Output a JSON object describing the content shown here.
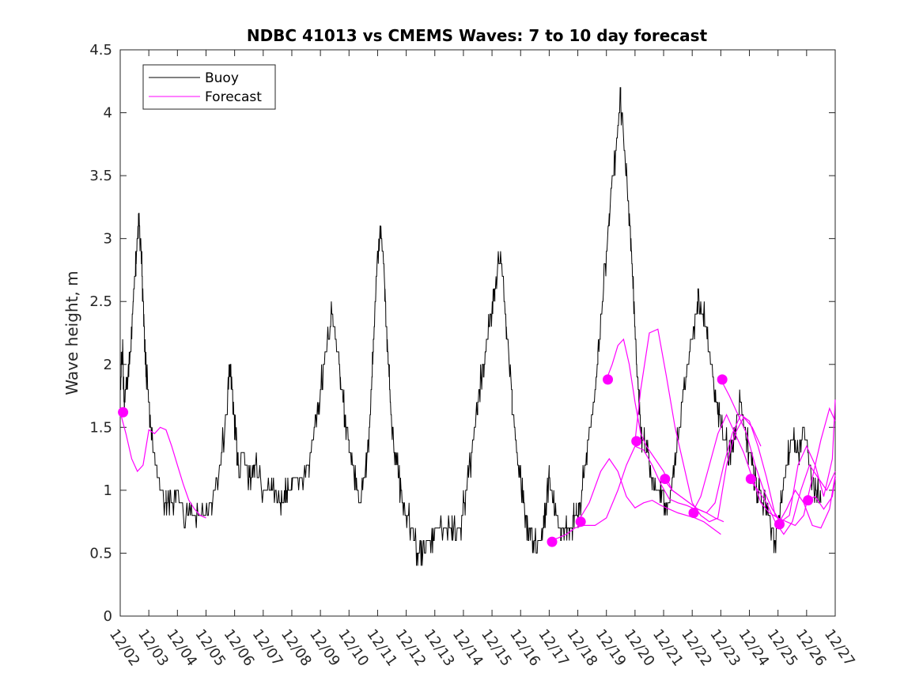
{
  "chart_data": {
    "type": "line",
    "title": "NDBC 41013 vs CMEMS Waves: 7 to 10 day forecast",
    "xlabel": "",
    "ylabel": "Wave height, m",
    "x_unit": "days since 12/02",
    "xlim": [
      0,
      25
    ],
    "ylim": [
      0,
      4.5
    ],
    "yticks": [
      0,
      0.5,
      1,
      1.5,
      2,
      2.5,
      3,
      3.5,
      4,
      4.5
    ],
    "ytick_labels": [
      "0",
      "0.5",
      "1",
      "1.5",
      "2",
      "2.5",
      "3",
      "3.5",
      "4",
      "4.5"
    ],
    "xticks": [
      0,
      1,
      2,
      3,
      4,
      5,
      6,
      7,
      8,
      9,
      10,
      11,
      12,
      13,
      14,
      15,
      16,
      17,
      18,
      19,
      20,
      21,
      22,
      23,
      24,
      25
    ],
    "xtick_labels": [
      "12/02",
      "12/03",
      "12/04",
      "12/05",
      "12/06",
      "12/07",
      "12/08",
      "12/09",
      "12/10",
      "12/11",
      "12/12",
      "12/13",
      "12/14",
      "12/15",
      "12/16",
      "12/17",
      "12/18",
      "12/19",
      "12/20",
      "12/21",
      "12/22",
      "12/23",
      "12/24",
      "12/25",
      "12/26",
      "12/27"
    ],
    "grid": false,
    "legend": {
      "position": "top-left",
      "entries": [
        "Buoy",
        "Forecast"
      ]
    },
    "colors": {
      "buoy": "#000000",
      "forecast": "#ff00ff",
      "axes": "#262626"
    },
    "buoy": {
      "name": "Buoy",
      "x": [
        0,
        0.08,
        0.15,
        0.3,
        0.45,
        0.55,
        0.65,
        0.75,
        0.82,
        0.9,
        1.0,
        1.1,
        1.25,
        1.4,
        1.6,
        1.8,
        2.0,
        2.3,
        2.6,
        2.9,
        3.2,
        3.5,
        3.7,
        3.85,
        3.95,
        4.05,
        4.15,
        4.3,
        4.5,
        4.7,
        5.0,
        5.3,
        5.6,
        5.8,
        6.0,
        6.3,
        6.6,
        6.8,
        7.0,
        7.2,
        7.4,
        7.55,
        7.7,
        7.85,
        8.0,
        8.2,
        8.4,
        8.6,
        8.75,
        8.85,
        8.95,
        9.1,
        9.25,
        9.35,
        9.45,
        9.6,
        9.8,
        10.0,
        10.2,
        10.4,
        10.6,
        10.8,
        11.0,
        11.3,
        11.6,
        11.9,
        12.1,
        12.3,
        12.5,
        12.7,
        12.85,
        12.95,
        13.1,
        13.3,
        13.5,
        13.7,
        13.9,
        14.1,
        14.25,
        14.4,
        14.6,
        14.8,
        15.0,
        15.2,
        15.4,
        15.6,
        15.75,
        15.85,
        15.95,
        16.1,
        16.3,
        16.5,
        16.7,
        16.9,
        17.1,
        17.3,
        17.5,
        17.7,
        17.85,
        17.95,
        18.05,
        18.15,
        18.25,
        18.4,
        18.6,
        18.8,
        19.0,
        19.2,
        19.4,
        19.6,
        19.8,
        20.0,
        20.2,
        20.4,
        20.6,
        20.8,
        20.95,
        21.1,
        21.3,
        21.5,
        21.7,
        21.9,
        22.1,
        22.3,
        22.5,
        22.7,
        22.9,
        23.1,
        23.3,
        23.5,
        23.7,
        23.9,
        24.1,
        24.3,
        24.5
      ],
      "y": [
        1.8,
        2.1,
        1.7,
        1.9,
        2.5,
        2.8,
        3.2,
        2.8,
        2.4,
        2.0,
        1.7,
        1.4,
        1.2,
        1.0,
        0.9,
        0.9,
        1.0,
        0.8,
        0.8,
        0.75,
        0.9,
        1.2,
        1.6,
        2.0,
        1.7,
        1.4,
        1.2,
        1.3,
        1.1,
        1.2,
        1.0,
        1.05,
        0.9,
        1.0,
        1.05,
        1.1,
        1.2,
        1.5,
        1.8,
        2.1,
        2.4,
        2.2,
        1.9,
        1.6,
        1.4,
        1.1,
        0.9,
        1.2,
        1.6,
        2.1,
        2.7,
        3.1,
        2.6,
        2.1,
        1.7,
        1.3,
        1.0,
        0.8,
        0.7,
        0.5,
        0.5,
        0.6,
        0.65,
        0.7,
        0.65,
        0.7,
        1.0,
        1.3,
        1.7,
        2.0,
        2.2,
        2.4,
        2.6,
        2.9,
        2.3,
        1.7,
        1.2,
        0.9,
        0.7,
        0.65,
        0.6,
        0.7,
        1.1,
        0.8,
        0.7,
        0.75,
        0.65,
        0.8,
        0.75,
        0.9,
        1.3,
        1.6,
        2.0,
        2.6,
        3.2,
        3.6,
        4.1,
        3.5,
        3.0,
        2.5,
        2.0,
        1.7,
        1.4,
        1.3,
        1.1,
        1.0,
        0.95,
        0.9,
        1.2,
        1.6,
        1.9,
        2.2,
        2.5,
        2.4,
        2.1,
        1.8,
        1.6,
        1.4,
        1.3,
        1.5,
        1.7,
        1.4,
        1.2,
        1.0,
        0.9,
        0.75,
        0.6,
        0.9,
        1.2,
        1.4,
        1.3,
        1.5,
        1.2,
        1.0,
        0.9
      ],
      "values_note": "approximate readings"
    },
    "forecast": {
      "name": "Forecast",
      "series": [
        {
          "x": [
            0,
            0.2,
            0.4,
            0.6,
            0.8,
            1.0,
            1.2,
            1.4,
            1.6,
            1.8,
            2.0,
            2.2,
            2.4,
            2.6,
            2.8,
            3.0
          ],
          "y": [
            1.62,
            1.45,
            1.25,
            1.15,
            1.2,
            1.48,
            1.45,
            1.5,
            1.48,
            1.35,
            1.2,
            1.05,
            0.92,
            0.85,
            0.8,
            0.78
          ]
        },
        {
          "x": [
            15.0,
            15.3,
            15.6,
            15.9,
            16.2,
            16.6,
            17.0,
            17.4,
            17.7,
            18.0,
            18.3,
            18.6,
            18.9,
            19.2,
            19.5,
            19.8,
            20.1
          ],
          "y": [
            0.6,
            0.62,
            0.65,
            0.7,
            0.72,
            0.72,
            0.78,
            1.0,
            1.2,
            1.35,
            1.32,
            1.2,
            1.05,
            0.93,
            0.9,
            0.88,
            0.85
          ]
        },
        {
          "x": [
            16.0,
            16.4,
            16.8,
            17.1,
            17.4,
            17.7,
            18.0,
            18.3,
            18.6,
            18.9,
            19.2,
            19.5,
            19.8,
            20.1,
            20.4,
            20.7,
            21.0
          ],
          "y": [
            0.75,
            0.9,
            1.15,
            1.25,
            1.15,
            0.95,
            0.86,
            0.9,
            0.92,
            0.88,
            0.85,
            0.82,
            0.8,
            0.78,
            0.75,
            0.7,
            0.65
          ]
        },
        {
          "x": [
            17.0,
            17.2,
            17.4,
            17.6,
            17.8,
            18.0,
            18.2,
            18.4,
            18.7,
            19.0,
            19.3,
            19.6,
            19.9,
            20.2,
            20.5,
            20.8,
            21.1
          ],
          "y": [
            1.88,
            2.0,
            2.15,
            2.2,
            2.0,
            1.7,
            1.45,
            1.35,
            1.25,
            1.15,
            1.0,
            0.95,
            0.9,
            0.85,
            0.82,
            0.78,
            0.75
          ]
        },
        {
          "x": [
            18.0,
            18.2,
            18.5,
            18.8,
            19.1,
            19.4,
            19.7,
            20.0,
            20.3,
            20.6,
            20.9,
            21.2,
            21.5,
            21.8,
            22.1,
            22.4
          ],
          "y": [
            1.39,
            1.8,
            2.25,
            2.28,
            1.9,
            1.5,
            1.2,
            0.9,
            0.8,
            0.75,
            0.78,
            1.2,
            1.45,
            1.58,
            1.5,
            1.35
          ]
        },
        {
          "x": [
            19.0,
            19.3,
            19.6,
            19.9,
            20.2,
            20.5,
            20.8,
            21.1,
            21.4,
            21.7,
            22.0,
            22.3,
            22.6,
            22.9,
            23.2
          ],
          "y": [
            1.09,
            1.0,
            0.95,
            0.9,
            0.85,
            0.82,
            0.9,
            1.2,
            1.45,
            1.6,
            1.55,
            1.35,
            1.1,
            0.8,
            0.72
          ]
        },
        {
          "x": [
            20.0,
            20.3,
            20.6,
            20.9,
            21.2,
            21.5,
            21.8,
            22.1,
            22.4,
            22.7,
            23.0,
            23.3,
            23.6,
            23.9,
            24.2,
            24.5,
            24.8,
            25.0
          ],
          "y": [
            0.82,
            0.95,
            1.2,
            1.45,
            1.6,
            1.45,
            1.3,
            1.1,
            0.9,
            0.82,
            0.78,
            0.75,
            0.72,
            0.8,
            1.1,
            1.4,
            1.65,
            1.55
          ]
        },
        {
          "x": [
            21.0,
            21.3,
            21.6,
            21.9,
            22.2,
            22.5,
            22.8,
            23.1,
            23.4,
            23.7,
            24.0,
            24.3,
            24.6,
            24.9,
            25.0
          ],
          "y": [
            1.88,
            1.75,
            1.6,
            1.45,
            1.2,
            1.0,
            0.85,
            0.75,
            0.8,
            1.2,
            1.35,
            1.2,
            0.95,
            1.25,
            1.72
          ]
        },
        {
          "x": [
            22.0,
            22.3,
            22.6,
            22.9,
            23.2,
            23.5,
            23.8,
            24.1,
            24.4,
            24.7,
            25.0
          ],
          "y": [
            1.09,
            1.0,
            0.9,
            0.75,
            0.65,
            0.75,
            1.0,
            1.2,
            1.1,
            1.0,
            1.15
          ]
        },
        {
          "x": [
            23.0,
            23.3,
            23.6,
            23.9,
            24.2,
            24.5,
            24.8,
            25.0
          ],
          "y": [
            0.73,
            0.85,
            1.0,
            0.9,
            0.72,
            0.7,
            0.85,
            1.12
          ]
        },
        {
          "x": [
            24.0,
            24.3,
            24.6,
            24.9,
            25.0
          ],
          "y": [
            0.92,
            0.95,
            0.85,
            0.95,
            1.1
          ]
        }
      ],
      "markers": {
        "x": [
          0.1,
          15.1,
          16.1,
          17.05,
          18.05,
          19.05,
          20.05,
          21.05,
          22.05,
          23.05,
          24.05
        ],
        "y": [
          1.62,
          0.59,
          0.75,
          1.88,
          1.39,
          1.09,
          0.82,
          1.88,
          1.09,
          0.73,
          0.92
        ]
      }
    }
  }
}
